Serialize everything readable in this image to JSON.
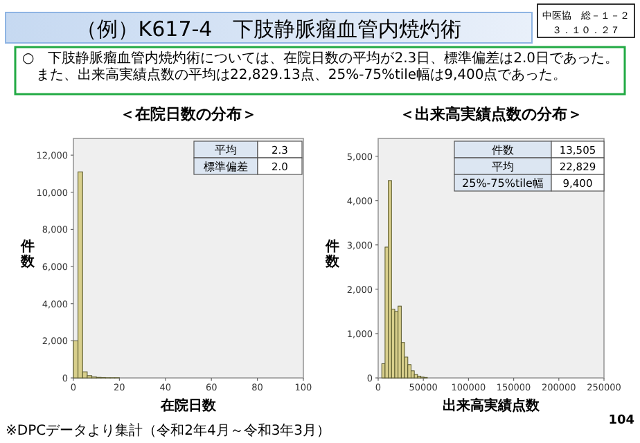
{
  "chart_data": [
    {
      "type": "other",
      "title": "（例）K617-4　下肢静脈瘤血管内焼灼術",
      "annotations": [
        "中医協　総－１－２",
        "３．１０．２７",
        "○　下肢静脈瘤血管内焼灼術については、在院日数の平均が2.3日、標準偏差は2.0日であった。",
        "また、出来高実績点数の平均は22,829.13点、25%-75%tile幅は9,400点であった。",
        "※DPCデータより集計（令和2年4月～令和3年3月）",
        "104"
      ]
    },
    {
      "type": "histogram",
      "title": "＜在院日数の分布＞",
      "xlabel": "在院日数",
      "ylabel": "件数",
      "color": "#d8cf8c",
      "bins": [
        0,
        2,
        4,
        6,
        8,
        10,
        12,
        14,
        16,
        18,
        20
      ],
      "values": [
        2000,
        11100,
        330,
        120,
        60,
        30,
        20,
        10,
        10,
        10
      ],
      "xlim": [
        0,
        100
      ],
      "xticks": [
        0,
        20,
        40,
        60,
        80,
        100
      ],
      "ylim": [
        0,
        12900
      ],
      "yticks": [
        0,
        {
          "value": 2000,
          "label": "2,000"
        },
        {
          "value": 4000,
          "label": "4,000"
        },
        {
          "value": 6000,
          "label": "6,000"
        },
        {
          "value": 8000,
          "label": "8,000"
        },
        {
          "value": 10000,
          "label": "10,000"
        },
        {
          "value": 12000,
          "label": "12,000"
        }
      ],
      "annotations": [
        "平均",
        "2.3",
        "標準偏差",
        "2.0"
      ]
    },
    {
      "type": "histogram",
      "title": "＜出来高実績点数の分布＞",
      "xlabel": "出来高実績点数",
      "ylabel": "件数",
      "color": "#d8cf8c",
      "bins": [
        4000,
        7600,
        11200,
        14800,
        18400,
        22000,
        25600,
        29200,
        32800,
        36400,
        40000,
        43600,
        47200,
        50800,
        54400
      ],
      "values": [
        320,
        2950,
        4450,
        1550,
        1500,
        1620,
        800,
        470,
        300,
        160,
        80,
        40,
        20,
        10
      ],
      "xlim": [
        0,
        250000
      ],
      "xticks": [
        0,
        50000,
        100000,
        150000,
        200000,
        250000
      ],
      "ylim": [
        0,
        5400
      ],
      "yticks": [
        0,
        {
          "value": 1000,
          "label": "1,000"
        },
        {
          "value": 2000,
          "label": "2,000"
        },
        {
          "value": 3000,
          "label": "3,000"
        },
        {
          "value": 4000,
          "label": "4,000"
        },
        {
          "value": 5000,
          "label": "5,000"
        }
      ],
      "annotations": [
        "件数",
        "13,505",
        "平均",
        "22,829",
        "25%-75%tile幅",
        "9,400"
      ]
    }
  ]
}
